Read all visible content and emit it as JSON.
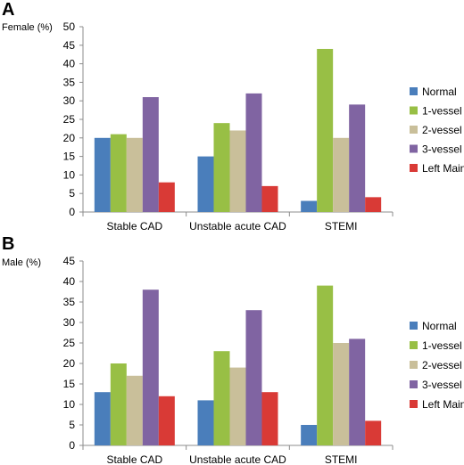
{
  "chart_data": [
    {
      "type": "bar",
      "panel": "A",
      "ylabel": "Female (%)",
      "ylim": [
        0,
        50
      ],
      "yticks": [
        0,
        5,
        10,
        15,
        20,
        25,
        30,
        35,
        40,
        45,
        50
      ],
      "categories": [
        "Stable CAD",
        "Unstable acute CAD",
        "STEMI"
      ],
      "series": [
        {
          "name": "Normal",
          "color": "#4a7ebb",
          "values": [
            20,
            15,
            3
          ]
        },
        {
          "name": "1-vessel",
          "color": "#98bf45",
          "values": [
            21,
            24,
            44
          ]
        },
        {
          "name": "2-vessel",
          "color": "#c9bf9a",
          "values": [
            20,
            22,
            20
          ]
        },
        {
          "name": "3-vessel",
          "color": "#8064a2",
          "values": [
            31,
            32,
            29
          ]
        },
        {
          "name": "Left Main",
          "color": "#d93a36",
          "values": [
            8,
            7,
            4
          ]
        }
      ],
      "legend": "right"
    },
    {
      "type": "bar",
      "panel": "B",
      "ylabel": "Male (%)",
      "ylim": [
        0,
        45
      ],
      "yticks": [
        0,
        5,
        10,
        15,
        20,
        25,
        30,
        35,
        40,
        45
      ],
      "categories": [
        "Stable CAD",
        "Unstable acute CAD",
        "STEMI"
      ],
      "series": [
        {
          "name": "Normal",
          "color": "#4a7ebb",
          "values": [
            13,
            11,
            5
          ]
        },
        {
          "name": "1-vessel",
          "color": "#98bf45",
          "values": [
            20,
            23,
            39
          ]
        },
        {
          "name": "2-vessel",
          "color": "#c9bf9a",
          "values": [
            17,
            19,
            25
          ]
        },
        {
          "name": "3-vessel",
          "color": "#8064a2",
          "values": [
            38,
            33,
            26
          ]
        },
        {
          "name": "Left Main",
          "color": "#d93a36",
          "values": [
            12,
            13,
            6
          ]
        }
      ],
      "legend": "right"
    }
  ]
}
